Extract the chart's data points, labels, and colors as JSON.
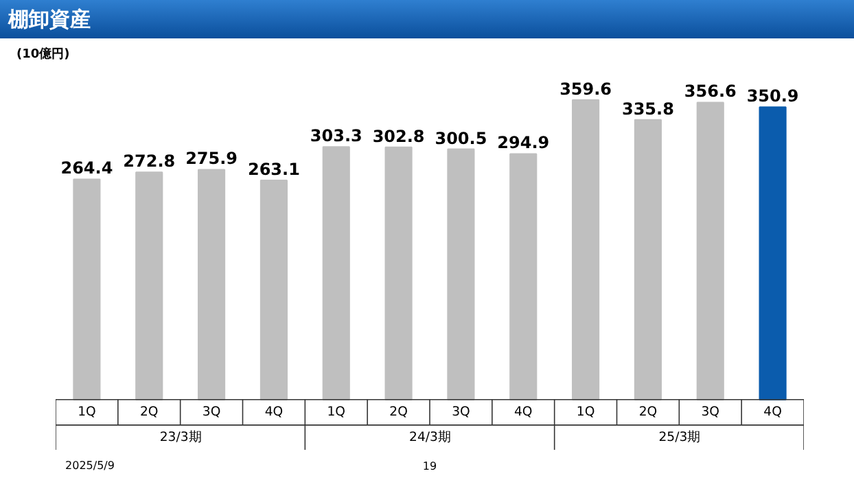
{
  "chart_data": {
    "type": "bar",
    "title": "棚卸資産",
    "ylabel": "(10億円)",
    "categories": [
      "1Q",
      "2Q",
      "3Q",
      "4Q",
      "1Q",
      "2Q",
      "3Q",
      "4Q",
      "1Q",
      "2Q",
      "3Q",
      "4Q"
    ],
    "values": [
      264.4,
      272.8,
      275.9,
      263.1,
      303.3,
      302.8,
      300.5,
      294.9,
      359.6,
      335.8,
      356.6,
      350.9
    ],
    "colors": [
      "#bfbfbf",
      "#bfbfbf",
      "#bfbfbf",
      "#bfbfbf",
      "#bfbfbf",
      "#bfbfbf",
      "#bfbfbf",
      "#bfbfbf",
      "#bfbfbf",
      "#bfbfbf",
      "#bfbfbf",
      "#0b5cad"
    ],
    "data_labels": true,
    "annotations": [
      "23/3期",
      "24/3期",
      "25/3期",
      "2025/5/9",
      "19"
    ]
  }
}
